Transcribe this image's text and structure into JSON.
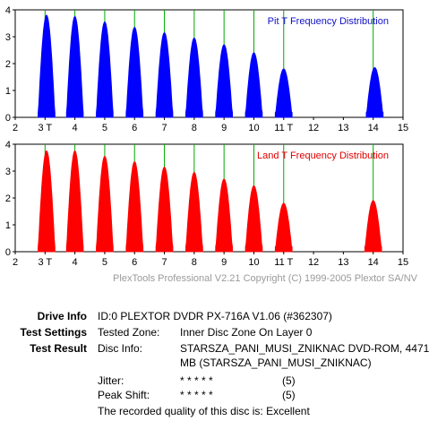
{
  "chart_data": [
    {
      "type": "area",
      "title": "Pit T Frequency Distribution",
      "title_color": "#1010c8",
      "fill_color": "#0000ff",
      "marker_color": "#00aa00",
      "xlim": [
        2,
        15
      ],
      "ylim": [
        0,
        4
      ],
      "x_ticks": [
        {
          "value": 2,
          "label": "2"
        },
        {
          "value": 3,
          "label": "3 T"
        },
        {
          "value": 4,
          "label": "4"
        },
        {
          "value": 5,
          "label": "5"
        },
        {
          "value": 6,
          "label": "6"
        },
        {
          "value": 7,
          "label": "7"
        },
        {
          "value": 8,
          "label": "8"
        },
        {
          "value": 9,
          "label": "9"
        },
        {
          "value": 10,
          "label": "10"
        },
        {
          "value": 11,
          "label": "11 T"
        },
        {
          "value": 12,
          "label": "12"
        },
        {
          "value": 13,
          "label": "13"
        },
        {
          "value": 14,
          "label": "14"
        },
        {
          "value": 15,
          "label": "15"
        }
      ],
      "y_ticks": [
        0,
        1,
        2,
        3,
        4
      ],
      "markers": [
        3,
        4,
        5,
        6,
        7,
        8,
        9,
        10,
        11,
        14
      ],
      "peaks": [
        {
          "center": 3.05,
          "height": 3.8
        },
        {
          "center": 4.0,
          "height": 3.75
        },
        {
          "center": 5.0,
          "height": 3.55
        },
        {
          "center": 6.0,
          "height": 3.35
        },
        {
          "center": 7.0,
          "height": 3.15
        },
        {
          "center": 8.0,
          "height": 2.95
        },
        {
          "center": 9.0,
          "height": 2.7
        },
        {
          "center": 10.0,
          "height": 2.4
        },
        {
          "center": 11.0,
          "height": 1.8
        },
        {
          "center": 14.05,
          "height": 1.85
        }
      ]
    },
    {
      "type": "area",
      "title": "Land T Frequency Distribution",
      "title_color": "#e00000",
      "fill_color": "#ff0000",
      "marker_color": "#00aa00",
      "xlim": [
        2,
        15
      ],
      "ylim": [
        0,
        4
      ],
      "x_ticks": [
        {
          "value": 2,
          "label": "2"
        },
        {
          "value": 3,
          "label": "3 T"
        },
        {
          "value": 4,
          "label": "4"
        },
        {
          "value": 5,
          "label": "5"
        },
        {
          "value": 6,
          "label": "6"
        },
        {
          "value": 7,
          "label": "7"
        },
        {
          "value": 8,
          "label": "8"
        },
        {
          "value": 9,
          "label": "9"
        },
        {
          "value": 10,
          "label": "10"
        },
        {
          "value": 11,
          "label": "11 T"
        },
        {
          "value": 12,
          "label": "12"
        },
        {
          "value": 13,
          "label": "13"
        },
        {
          "value": 14,
          "label": "14"
        },
        {
          "value": 15,
          "label": "15"
        }
      ],
      "y_ticks": [
        0,
        1,
        2,
        3,
        4
      ],
      "markers": [
        3,
        4,
        5,
        6,
        7,
        8,
        9,
        10,
        11,
        14
      ],
      "peaks": [
        {
          "center": 3.05,
          "height": 3.75
        },
        {
          "center": 4.0,
          "height": 3.75
        },
        {
          "center": 5.0,
          "height": 3.55
        },
        {
          "center": 6.0,
          "height": 3.35
        },
        {
          "center": 7.0,
          "height": 3.15
        },
        {
          "center": 8.0,
          "height": 2.95
        },
        {
          "center": 9.0,
          "height": 2.7
        },
        {
          "center": 10.0,
          "height": 2.45
        },
        {
          "center": 11.0,
          "height": 1.8
        },
        {
          "center": 14.0,
          "height": 1.9
        }
      ]
    }
  ],
  "copyright": "PlexTools Professional V2.21 Copyright (C) 1999-2005 Plextor SA/NV",
  "info": {
    "drive_info_label": "Drive Info",
    "drive_info_value": "ID:0 PLEXTOR DVDR PX-716A V1.06 (#362307)",
    "test_settings_label": "Test Settings",
    "tested_zone_label": "Tested Zone:",
    "tested_zone_value": "Inner Disc Zone On Layer 0",
    "test_result_label": "Test Result",
    "disc_info_label": "Disc Info:",
    "disc_info_line1": "STARSZA_PANI_MUSI_ZNIKNAC DVD-ROM, 4471",
    "disc_info_line2": "MB (STARSZA_PANI_MUSI_ZNIKNAC)",
    "jitter_label": "Jitter:",
    "jitter_stars": "* * * * *",
    "jitter_score": "(5)",
    "peak_shift_label": "Peak Shift:",
    "peak_shift_stars": "* * * * *",
    "peak_shift_score": "(5)",
    "quality_text": "The recorded quality of this disc is: Excellent"
  }
}
